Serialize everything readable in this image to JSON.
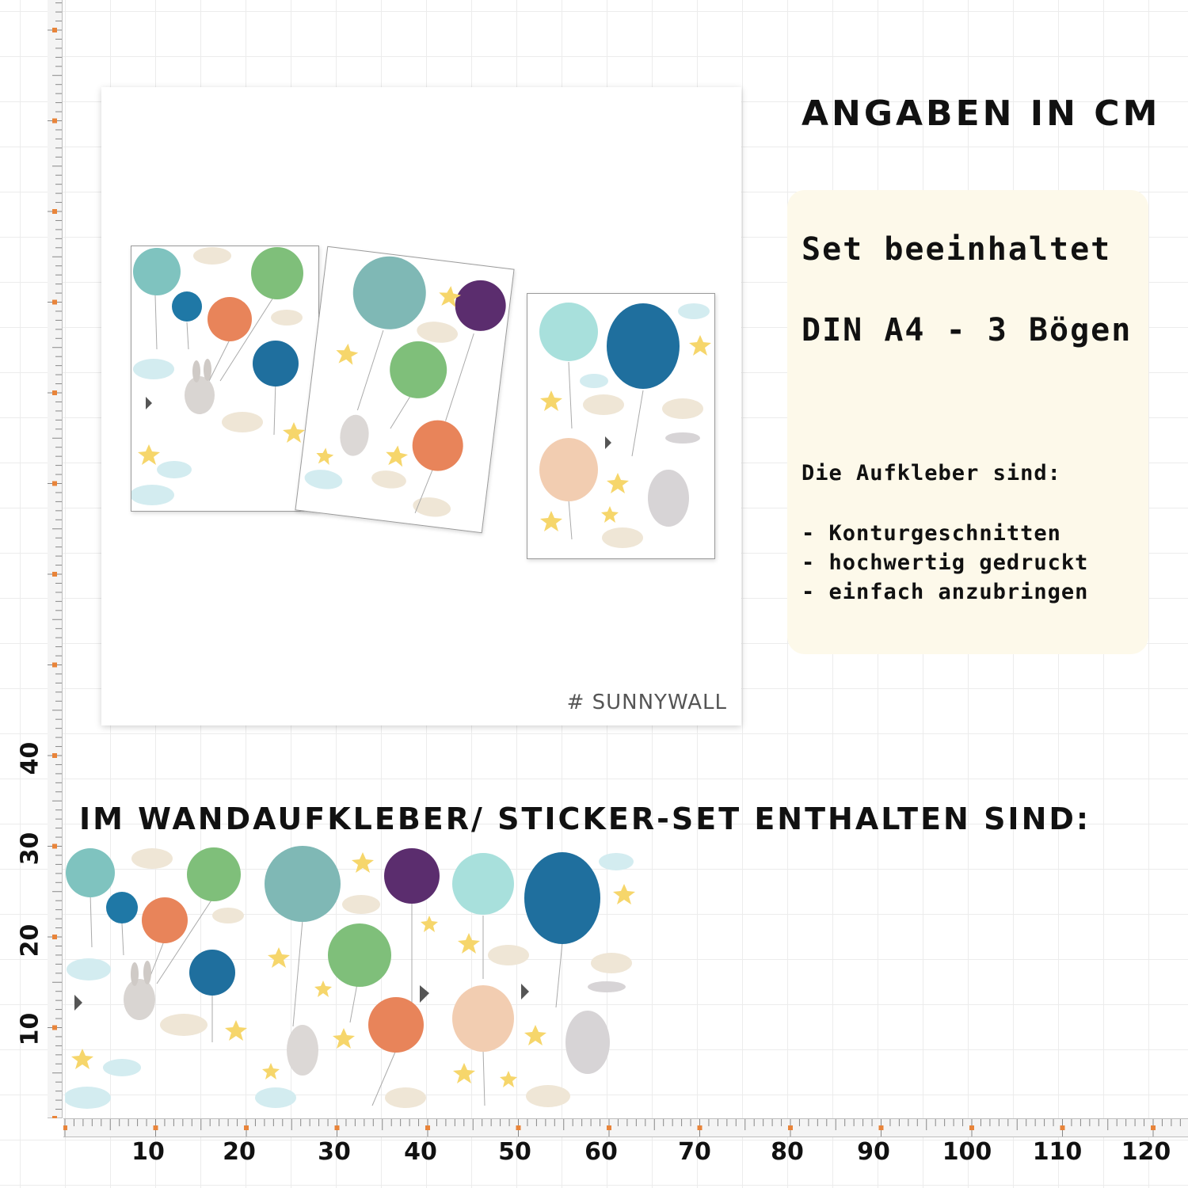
{
  "heading_cm": "ANGABEN IN CM",
  "info": {
    "set_title": "Set beeinhaltet",
    "set_size": "DIN A4 - 3 Bögen",
    "features_title": "Die Aufkleber sind:",
    "features": [
      "- Konturgeschnitten",
      "- hochwertig gedruckt",
      "- einfach anzubringen"
    ]
  },
  "section_heading": "IM WANDAUFKLEBER/ STICKER-SET ENTHALTEN SIND:",
  "brand": "# SUNNYWALL",
  "ruler": {
    "unit": "cm",
    "y_labels": [
      "10",
      "20",
      "30",
      "40"
    ],
    "x_labels": [
      "10",
      "20",
      "30",
      "40",
      "50",
      "60",
      "70",
      "80",
      "90",
      "100",
      "110",
      "120"
    ]
  },
  "colors": {
    "accent_orange": "#e8843a",
    "info_box_bg": "#fdf9ea",
    "balloon_mint": "#7fc3bf",
    "balloon_teal": "#1f78a6",
    "balloon_green": "#7fbf7a",
    "balloon_orange": "#e8845a",
    "balloon_purple": "#5b2d6e",
    "balloon_peach": "#f2cdb1",
    "star": "#f6d66b",
    "cloud": "#efe6d6",
    "cloud_blue": "#d3ecf0"
  }
}
